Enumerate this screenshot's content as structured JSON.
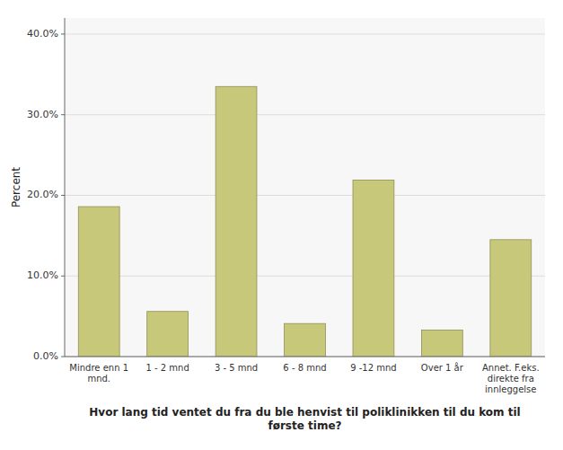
{
  "chart_data": {
    "type": "bar",
    "categories": [
      "Mindre enn 1\nmnd.",
      "1 - 2 mnd",
      "3 - 5 mnd",
      "6 - 8 mnd",
      "9 -12 mnd",
      "Over 1 år",
      "Annet. F.eks.\ndirekte fra\ninnleggelse"
    ],
    "values": [
      18.6,
      5.6,
      33.5,
      4.1,
      21.9,
      3.3,
      14.5
    ],
    "color": "#C8C87A",
    "xlabel": "Hvor lang tid ventet du fra du ble henvist til poliklinikken til du kom til\nførste time?",
    "ylabel": "Percent",
    "ylim": [
      0,
      42
    ],
    "yticks": [
      {
        "value": 0.0,
        "label": "0.0%"
      },
      {
        "value": 10.0,
        "label": "10.0%"
      },
      {
        "value": 20.0,
        "label": "20.0%"
      },
      {
        "value": 30.0,
        "label": "30.0%"
      },
      {
        "value": 40.0,
        "label": "40.0%"
      }
    ],
    "grid": true
  }
}
